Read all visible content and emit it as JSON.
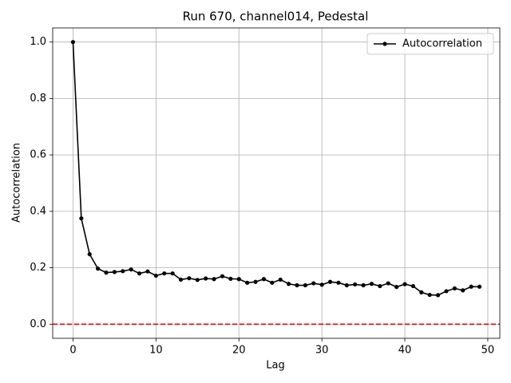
{
  "chart_data": {
    "type": "line",
    "title": "Run 670, channel014, Pedestal",
    "xlabel": "Lag",
    "ylabel": "Autocorrelation",
    "x": [
      0,
      1,
      2,
      3,
      4,
      5,
      6,
      7,
      8,
      9,
      10,
      11,
      12,
      13,
      14,
      15,
      16,
      17,
      18,
      19,
      20,
      21,
      22,
      23,
      24,
      25,
      26,
      27,
      28,
      29,
      30,
      31,
      32,
      33,
      34,
      35,
      36,
      37,
      38,
      39,
      40,
      41,
      42,
      43,
      44,
      45,
      46,
      47,
      48,
      49
    ],
    "series": [
      {
        "name": "Autocorrelation",
        "color": "#000000",
        "values": [
          1.0,
          0.375,
          0.248,
          0.197,
          0.183,
          0.185,
          0.188,
          0.194,
          0.18,
          0.187,
          0.172,
          0.18,
          0.18,
          0.158,
          0.163,
          0.157,
          0.162,
          0.16,
          0.17,
          0.161,
          0.16,
          0.147,
          0.15,
          0.16,
          0.147,
          0.158,
          0.143,
          0.138,
          0.138,
          0.145,
          0.14,
          0.15,
          0.147,
          0.138,
          0.141,
          0.138,
          0.143,
          0.135,
          0.145,
          0.132,
          0.142,
          0.135,
          0.113,
          0.104,
          0.103,
          0.117,
          0.127,
          0.12,
          0.133,
          0.133
        ]
      }
    ],
    "reference_line": {
      "value": 0,
      "color": "#ff0000"
    },
    "xlim": [
      -2.45,
      51.45
    ],
    "xticks": [
      0,
      10,
      20,
      30,
      40,
      50
    ],
    "ylim": [
      -0.05,
      1.05
    ],
    "yticks": [
      {
        "value": 0,
        "label": "0.0"
      },
      0.2,
      0.4,
      0.6,
      0.8,
      {
        "value": 1,
        "label": "1.0"
      }
    ],
    "grid": true,
    "legend": "upper right"
  }
}
